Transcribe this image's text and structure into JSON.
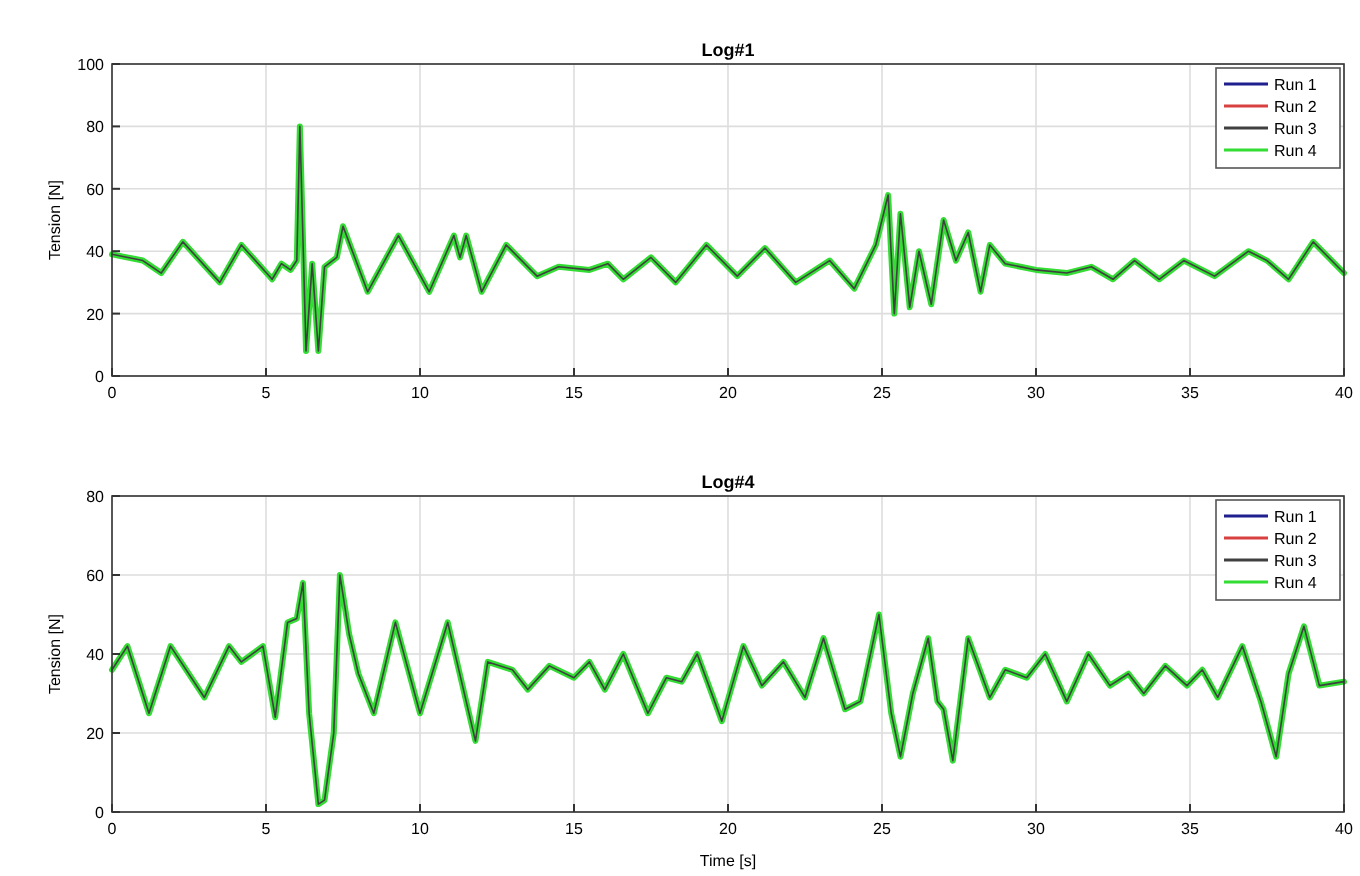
{
  "chart_data": [
    {
      "type": "line",
      "title": "Log#1",
      "ylabel": "Tension [N]",
      "grid": true,
      "legend": "top right",
      "xlim": [
        0,
        40
      ],
      "xticks": [
        0,
        5,
        10,
        15,
        20,
        25,
        30,
        35,
        40
      ],
      "ylim": [
        0,
        100
      ],
      "yticks": [
        0,
        20,
        40,
        60,
        80,
        100
      ],
      "x": [
        0,
        1,
        1.6,
        2.3,
        3.5,
        4.2,
        5.2,
        5.5,
        5.8,
        6.0,
        6.1,
        6.3,
        6.5,
        6.7,
        6.9,
        7.3,
        7.5,
        8.3,
        9.3,
        10.3,
        11.1,
        11.3,
        11.5,
        12.0,
        12.8,
        13.8,
        14.5,
        15.5,
        16.1,
        16.6,
        17.5,
        18.3,
        19.3,
        20.3,
        21.2,
        22.2,
        23.3,
        24.1,
        24.8,
        25.2,
        25.4,
        25.6,
        25.9,
        26.2,
        26.6,
        27.0,
        27.4,
        27.8,
        28.2,
        28.5,
        29.0,
        30,
        31,
        31.8,
        32.5,
        33.2,
        34,
        34.8,
        35.8,
        36.9,
        37.5,
        38.2,
        39.0,
        40
      ],
      "series": [
        {
          "name": "Run 1",
          "color": "#1f1f8f",
          "values": [
            null,
            null,
            null,
            null,
            null,
            null,
            null,
            null,
            null,
            null,
            null,
            null,
            null,
            null,
            null,
            null,
            null,
            null,
            null,
            null,
            null,
            null,
            null,
            null,
            null,
            null,
            null,
            null,
            null,
            null,
            null,
            null,
            null,
            null,
            null,
            null,
            null,
            null,
            null,
            null,
            null,
            null,
            null,
            null,
            null,
            null,
            null,
            null,
            null,
            null,
            null,
            null,
            null,
            null,
            null,
            null,
            null,
            null,
            null,
            null,
            null,
            null,
            null,
            null
          ]
        },
        {
          "name": "Run 2",
          "color": "#d94040",
          "values": [
            null,
            null,
            null,
            null,
            null,
            null,
            null,
            null,
            null,
            null,
            null,
            null,
            null,
            null,
            null,
            null,
            null,
            null,
            null,
            null,
            null,
            null,
            null,
            null,
            null,
            null,
            null,
            null,
            null,
            null,
            null,
            null,
            null,
            null,
            null,
            null,
            null,
            null,
            null,
            null,
            null,
            null,
            null,
            null,
            null,
            null,
            null,
            null,
            null,
            null,
            null,
            null,
            null,
            null,
            null,
            null,
            null,
            null,
            null,
            null,
            null,
            null,
            null,
            null
          ]
        },
        {
          "name": "Run 3",
          "color": "#404040",
          "values": [
            39,
            37,
            33,
            43,
            30,
            42,
            31,
            36,
            34,
            37,
            80,
            8,
            36,
            8,
            35,
            38,
            48,
            27,
            45,
            27,
            45,
            38,
            45,
            27,
            42,
            32,
            35,
            34,
            36,
            31,
            38,
            30,
            42,
            32,
            41,
            30,
            37,
            28,
            42,
            58,
            20,
            52,
            22,
            40,
            23,
            50,
            37,
            46,
            27,
            42,
            36,
            34,
            33,
            35,
            31,
            37,
            31,
            37,
            32,
            40,
            37,
            31,
            43,
            33
          ]
        },
        {
          "name": "Run 4",
          "color": "#33dd33",
          "values": [
            39,
            37,
            33,
            43,
            30,
            42,
            31,
            36,
            34,
            37,
            80,
            8,
            36,
            8,
            35,
            38,
            48,
            27,
            45,
            27,
            45,
            38,
            45,
            27,
            42,
            32,
            35,
            34,
            36,
            31,
            38,
            30,
            42,
            32,
            41,
            30,
            37,
            28,
            42,
            58,
            20,
            52,
            22,
            40,
            23,
            50,
            37,
            46,
            27,
            42,
            36,
            34,
            33,
            35,
            31,
            37,
            31,
            37,
            32,
            40,
            37,
            31,
            43,
            33
          ]
        }
      ]
    },
    {
      "type": "line",
      "title": "Log#4",
      "xlabel": "Time [s]",
      "ylabel": "Tension [N]",
      "grid": true,
      "legend": "top right",
      "xlim": [
        0,
        40
      ],
      "xticks": [
        0,
        5,
        10,
        15,
        20,
        25,
        30,
        35,
        40
      ],
      "ylim": [
        0,
        80
      ],
      "yticks": [
        0,
        20,
        40,
        60,
        80
      ],
      "x": [
        0,
        0.5,
        1.2,
        1.9,
        3.0,
        3.8,
        4.2,
        4.9,
        5.3,
        5.7,
        6.0,
        6.2,
        6.4,
        6.7,
        6.9,
        7.2,
        7.4,
        7.7,
        8.0,
        8.5,
        9.2,
        10.0,
        10.9,
        11.8,
        12.2,
        13.0,
        13.5,
        14.2,
        15,
        15.5,
        16.0,
        16.6,
        17.4,
        18.0,
        18.5,
        19.0,
        19.8,
        20.5,
        21.1,
        21.8,
        22.5,
        23.1,
        23.8,
        24.3,
        24.9,
        25.3,
        25.6,
        26.0,
        26.5,
        26.8,
        27.0,
        27.3,
        27.8,
        28.5,
        29.0,
        29.7,
        30.3,
        31.0,
        31.7,
        32.4,
        33.0,
        33.5,
        34.2,
        34.9,
        35.4,
        35.9,
        36.7,
        37.3,
        37.8,
        38.2,
        38.7,
        39.2,
        40
      ],
      "series": [
        {
          "name": "Run 1",
          "color": "#1f1f8f",
          "values": [
            null,
            null,
            null,
            null,
            null,
            null,
            null,
            null,
            null,
            null,
            null,
            null,
            null,
            null,
            null,
            null,
            null,
            null,
            null,
            null,
            null,
            null,
            null,
            null,
            null,
            null,
            null,
            null,
            null,
            null,
            null,
            null,
            null,
            null,
            null,
            null,
            null,
            null,
            null,
            null,
            null,
            null,
            null,
            null,
            null,
            null,
            null,
            null,
            null,
            null,
            null,
            null,
            null,
            null,
            null,
            null,
            null,
            null,
            null,
            null,
            null,
            null,
            null,
            null,
            null,
            null,
            null,
            null,
            null,
            null,
            null,
            null,
            null
          ]
        },
        {
          "name": "Run 2",
          "color": "#d94040",
          "values": [
            null,
            null,
            null,
            null,
            null,
            null,
            null,
            null,
            null,
            null,
            null,
            null,
            null,
            null,
            null,
            null,
            null,
            null,
            null,
            null,
            null,
            null,
            null,
            null,
            null,
            null,
            null,
            null,
            null,
            null,
            null,
            null,
            null,
            null,
            null,
            null,
            null,
            null,
            null,
            null,
            null,
            null,
            null,
            null,
            null,
            null,
            null,
            null,
            null,
            null,
            null,
            null,
            null,
            null,
            null,
            null,
            null,
            null,
            null,
            null,
            null,
            null,
            null,
            null,
            null,
            null,
            null,
            null,
            null,
            null,
            null,
            null,
            null
          ]
        },
        {
          "name": "Run 3",
          "color": "#404040",
          "values": [
            36,
            42,
            25,
            42,
            29,
            42,
            38,
            42,
            24,
            48,
            49,
            58,
            25,
            2,
            3,
            20,
            60,
            45,
            35,
            25,
            48,
            25,
            48,
            18,
            38,
            36,
            31,
            37,
            34,
            38,
            31,
            40,
            25,
            34,
            33,
            40,
            23,
            42,
            32,
            38,
            29,
            44,
            26,
            28,
            50,
            25,
            14,
            30,
            44,
            28,
            26,
            13,
            44,
            29,
            36,
            34,
            40,
            28,
            40,
            32,
            35,
            30,
            37,
            32,
            36,
            29,
            42,
            28,
            14,
            35,
            47,
            32,
            33
          ]
        },
        {
          "name": "Run 4",
          "color": "#33dd33",
          "values": [
            36,
            42,
            25,
            42,
            29,
            42,
            38,
            42,
            24,
            48,
            49,
            58,
            25,
            2,
            3,
            20,
            60,
            45,
            35,
            25,
            48,
            25,
            48,
            18,
            38,
            36,
            31,
            37,
            34,
            38,
            31,
            40,
            25,
            34,
            33,
            40,
            23,
            42,
            32,
            38,
            29,
            44,
            26,
            28,
            50,
            25,
            14,
            30,
            44,
            28,
            26,
            13,
            44,
            29,
            36,
            34,
            40,
            28,
            40,
            32,
            35,
            30,
            37,
            32,
            36,
            29,
            42,
            28,
            14,
            35,
            47,
            32,
            33
          ]
        }
      ]
    }
  ]
}
